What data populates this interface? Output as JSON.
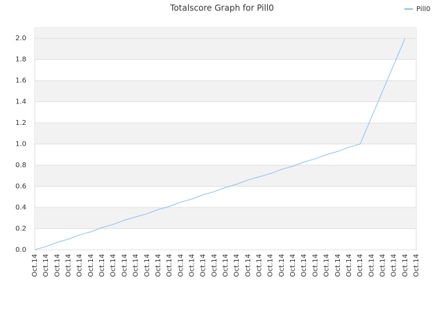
{
  "chart_data": {
    "type": "line",
    "title": "Totalscore Graph for Pill0",
    "categories": [
      "Oct.14",
      "Oct.14",
      "Oct.14",
      "Oct.14",
      "Oct.14",
      "Oct.14",
      "Oct.14",
      "Oct.14",
      "Oct.14",
      "Oct.14",
      "Oct.14",
      "Oct.14",
      "Oct.14",
      "Oct.14",
      "Oct.14",
      "Oct.14",
      "Oct.14",
      "Oct.14",
      "Oct.14",
      "Oct.14",
      "Oct.14",
      "Oct.14",
      "Oct.14",
      "Oct.14",
      "Oct.14",
      "Oct.14",
      "Oct.14",
      "Oct.14",
      "Oct.14",
      "Oct.14",
      "Oct.14",
      "Oct.14",
      "Oct.14",
      "Oct.14",
      "Oct.14"
    ],
    "series": [
      {
        "name": "Pill0",
        "color": "#88c0ee",
        "values": [
          0,
          0.03,
          0.07,
          0.1,
          0.14,
          0.17,
          0.21,
          0.24,
          0.28,
          0.31,
          0.34,
          0.38,
          0.41,
          0.45,
          0.48,
          0.52,
          0.55,
          0.59,
          0.62,
          0.66,
          0.69,
          0.72,
          0.76,
          0.79,
          0.83,
          0.86,
          0.9,
          0.93,
          0.97,
          1.0,
          1.25,
          1.5,
          1.75,
          2.0,
          null
        ]
      }
    ],
    "ylim": [
      0,
      2.1
    ],
    "yticks": [
      {
        "value": 0,
        "label": "0.0"
      },
      0.2,
      0.4,
      0.6,
      0.8,
      {
        "value": 1,
        "label": "1.0"
      },
      1.2,
      1.4,
      1.6,
      1.8,
      {
        "value": 2,
        "label": "2.0"
      }
    ],
    "grid": true,
    "legend": "top-right"
  }
}
